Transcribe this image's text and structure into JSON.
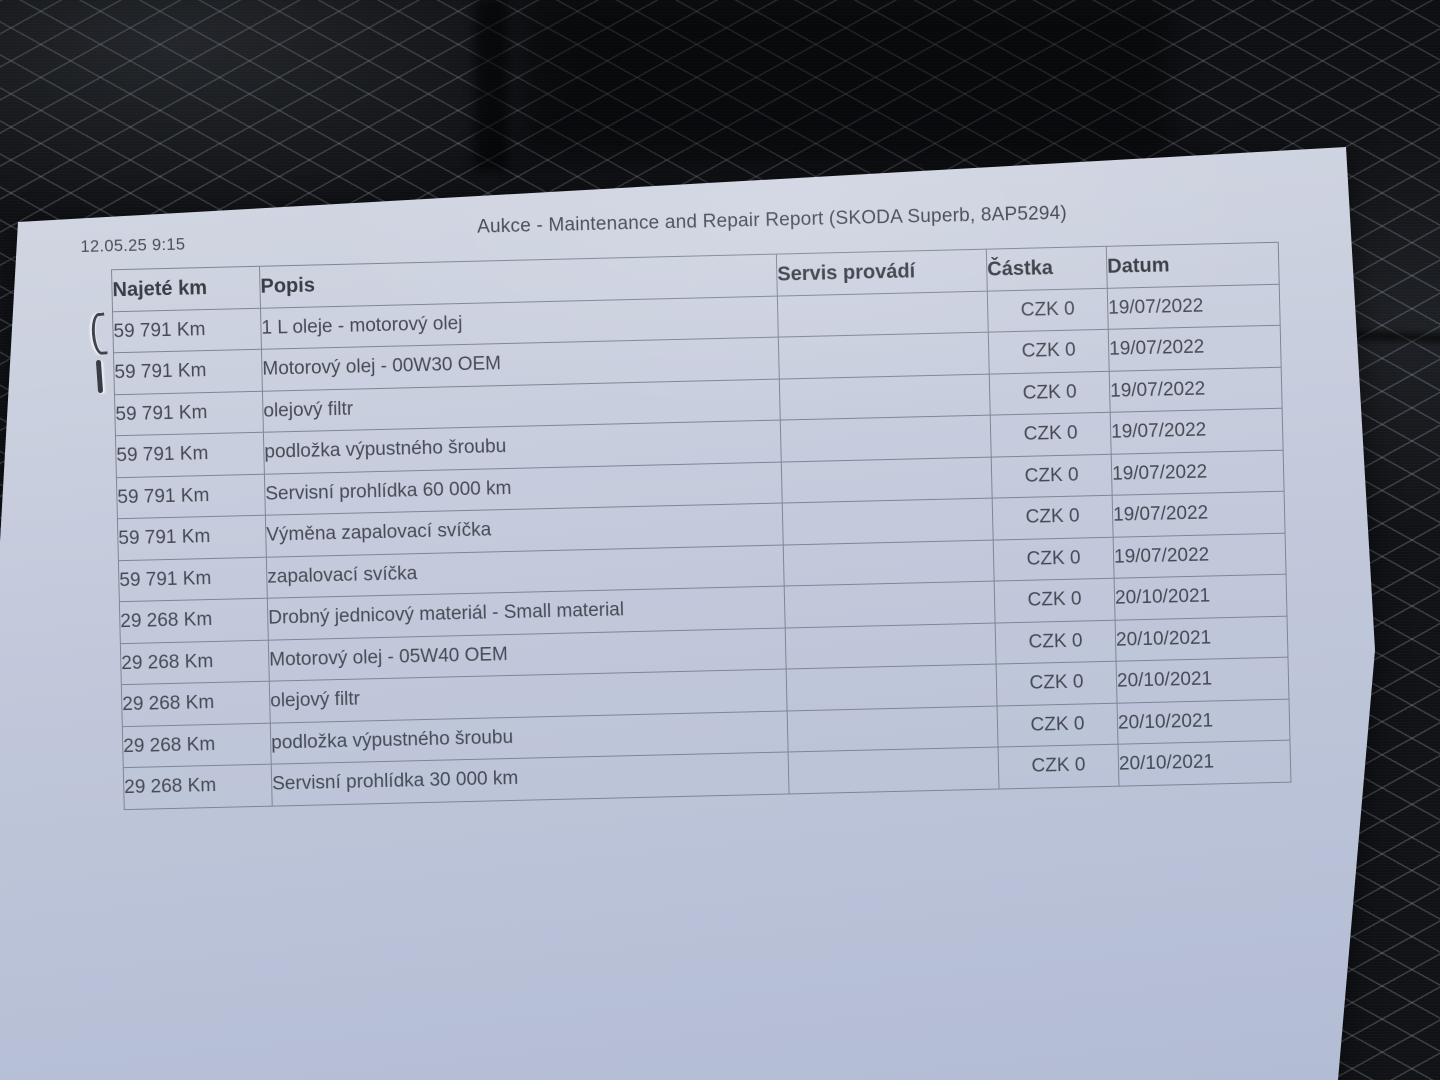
{
  "document": {
    "print_timestamp": "12.05.25 9:15",
    "title": "Aukce - Maintenance and Repair Report (SKODA Superb, 8AP5294)",
    "table": {
      "columns": [
        "Najeté km",
        "Popis",
        "Servis provádí",
        "Částka",
        "Datum"
      ],
      "rows": [
        {
          "mileage": "59 791 Km",
          "description": "1 L oleje - motorový olej",
          "service": "",
          "amount": "CZK 0",
          "date": "19/07/2022"
        },
        {
          "mileage": "59 791 Km",
          "description": "Motorový olej - 00W30 OEM",
          "service": "",
          "amount": "CZK 0",
          "date": "19/07/2022"
        },
        {
          "mileage": "59 791 Km",
          "description": "olejový filtr",
          "service": "",
          "amount": "CZK 0",
          "date": "19/07/2022"
        },
        {
          "mileage": "59 791 Km",
          "description": "podložka výpustného šroubu",
          "service": "",
          "amount": "CZK 0",
          "date": "19/07/2022"
        },
        {
          "mileage": "59 791 Km",
          "description": "Servisní prohlídka 60 000 km",
          "service": "",
          "amount": "CZK 0",
          "date": "19/07/2022"
        },
        {
          "mileage": "59 791 Km",
          "description": "Výměna zapalovací svíčka",
          "service": "",
          "amount": "CZK 0",
          "date": "19/07/2022"
        },
        {
          "mileage": "59 791 Km",
          "description": "zapalovací svíčka",
          "service": "",
          "amount": "CZK 0",
          "date": "19/07/2022"
        },
        {
          "mileage": "29 268 Km",
          "description": "Drobný jednicový materiál - Small material",
          "service": "",
          "amount": "CZK 0",
          "date": "20/10/2021"
        },
        {
          "mileage": "29 268 Km",
          "description": "Motorový olej - 05W40 OEM",
          "service": "",
          "amount": "CZK 0",
          "date": "20/10/2021"
        },
        {
          "mileage": "29 268 Km",
          "description": "olejový filtr",
          "service": "",
          "amount": "CZK 0",
          "date": "20/10/2021"
        },
        {
          "mileage": "29 268 Km",
          "description": "podložka výpustného šroubu",
          "service": "",
          "amount": "CZK 0",
          "date": "20/10/2021"
        },
        {
          "mileage": "29 268 Km",
          "description": "Servisní prohlídka 30 000 km",
          "service": "",
          "amount": "CZK 0",
          "date": "20/10/2021"
        }
      ]
    }
  },
  "colors": {
    "paper_top": "#d8dbe5",
    "paper_bottom": "#b2bcd4",
    "fabric_base": "#101216",
    "fabric_stitch": "#969ea8",
    "table_border": "#7e8694",
    "print_text": "#454a54"
  }
}
